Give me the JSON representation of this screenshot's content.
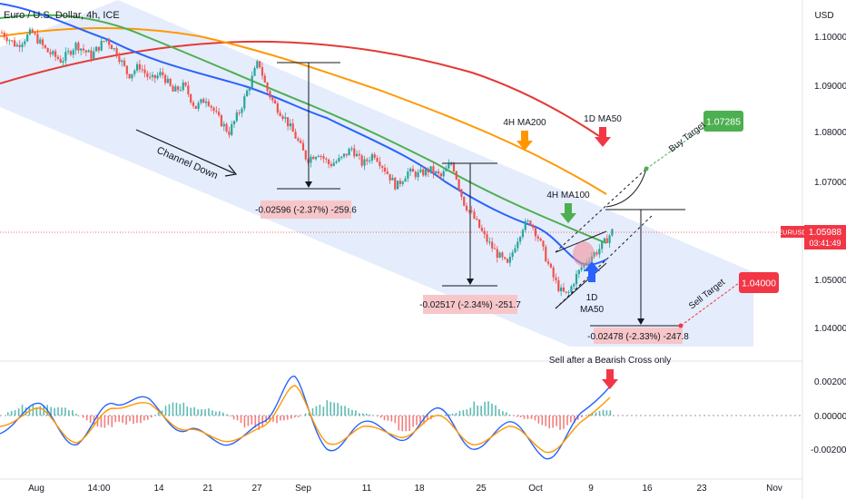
{
  "header": {
    "symbol_title": "Euro / U.S. Dollar, 4h, ICE",
    "currency_label": "USD"
  },
  "chart_data": {
    "type": "candlestick",
    "instrument": "EURUSD",
    "timeframe": "4h",
    "price_axis": {
      "ticks": [
        "1.10000",
        "1.09000",
        "1.08000",
        "1.07000",
        "1.05000",
        "1.04000"
      ],
      "macd_ticks": [
        "0.00200",
        "0.00000",
        "-0.00200"
      ]
    },
    "time_axis": {
      "labels": [
        "Aug",
        "14:00",
        "14",
        "21",
        "27",
        "Sep",
        "11",
        "18",
        "25",
        "Oct",
        "9",
        "16",
        "23",
        "Nov"
      ]
    },
    "current_price": {
      "symbol": "EURUSD",
      "price": "1.05988",
      "countdown": "03:41:49"
    },
    "targets": {
      "buy": {
        "label": "Buy Target",
        "price": "1.07285",
        "color": "#4caf50"
      },
      "sell": {
        "label": "Sell Target",
        "price": "1.04000",
        "color": "#f23645"
      }
    },
    "annotations": {
      "channel": "Channel Down",
      "ma200_4h": "4H MA200",
      "ma50_1d_top": "1D MA50",
      "ma100_4h": "4H MA100",
      "ma50_1d_bottom_a": "1D",
      "ma50_1d_bottom_b": "MA50",
      "macd_note": "Sell after a Bearish Cross only"
    },
    "measurements": [
      {
        "text": "-0.02596 (-2.37%) -259.6"
      },
      {
        "text": "-0.02517 (-2.34%) -251.7"
      },
      {
        "text": "-0.02478 (-2.33%) -247.8"
      }
    ],
    "price_path": [
      [
        0.0,
        1.1002
      ],
      [
        0.02,
        1.0975
      ],
      [
        0.04,
        1.1003
      ],
      [
        0.06,
        1.0965
      ],
      [
        0.08,
        1.0945
      ],
      [
        0.1,
        1.0978
      ],
      [
        0.12,
        1.0955
      ],
      [
        0.14,
        1.099
      ],
      [
        0.155,
        1.096
      ],
      [
        0.17,
        1.0915
      ],
      [
        0.185,
        1.0935
      ],
      [
        0.2,
        1.0905
      ],
      [
        0.215,
        1.092
      ],
      [
        0.23,
        1.0882
      ],
      [
        0.245,
        1.0895
      ],
      [
        0.26,
        1.085
      ],
      [
        0.275,
        1.087
      ],
      [
        0.29,
        1.083
      ],
      [
        0.305,
        1.08
      ],
      [
        0.32,
        1.0845
      ],
      [
        0.335,
        1.0905
      ],
      [
        0.345,
        1.0945
      ],
      [
        0.355,
        1.089
      ],
      [
        0.365,
        1.086
      ],
      [
        0.38,
        1.083
      ],
      [
        0.395,
        1.079
      ],
      [
        0.41,
        1.0745
      ],
      [
        0.425,
        1.076
      ],
      [
        0.44,
        1.0735
      ],
      [
        0.455,
        1.0745
      ],
      [
        0.47,
        1.0768
      ],
      [
        0.485,
        1.0735
      ],
      [
        0.5,
        1.0758
      ],
      [
        0.515,
        1.0725
      ],
      [
        0.53,
        1.069
      ],
      [
        0.545,
        1.072
      ],
      [
        0.56,
        1.0715
      ],
      [
        0.575,
        1.0725
      ],
      [
        0.59,
        1.071
      ],
      [
        0.605,
        1.074
      ],
      [
        0.62,
        1.066
      ],
      [
        0.635,
        1.0625
      ],
      [
        0.65,
        1.0585
      ],
      [
        0.665,
        1.0555
      ],
      [
        0.68,
        1.053
      ],
      [
        0.69,
        1.0575
      ],
      [
        0.7,
        1.061
      ],
      [
        0.71,
        1.062
      ],
      [
        0.72,
        1.059
      ],
      [
        0.73,
        1.055
      ],
      [
        0.74,
        1.051
      ],
      [
        0.75,
        1.048
      ],
      [
        0.76,
        1.047
      ],
      [
        0.77,
        1.0505
      ],
      [
        0.78,
        1.053
      ],
      [
        0.79,
        1.0548
      ],
      [
        0.8,
        1.056
      ],
      [
        0.81,
        1.0578
      ],
      [
        0.82,
        1.06
      ]
    ]
  }
}
